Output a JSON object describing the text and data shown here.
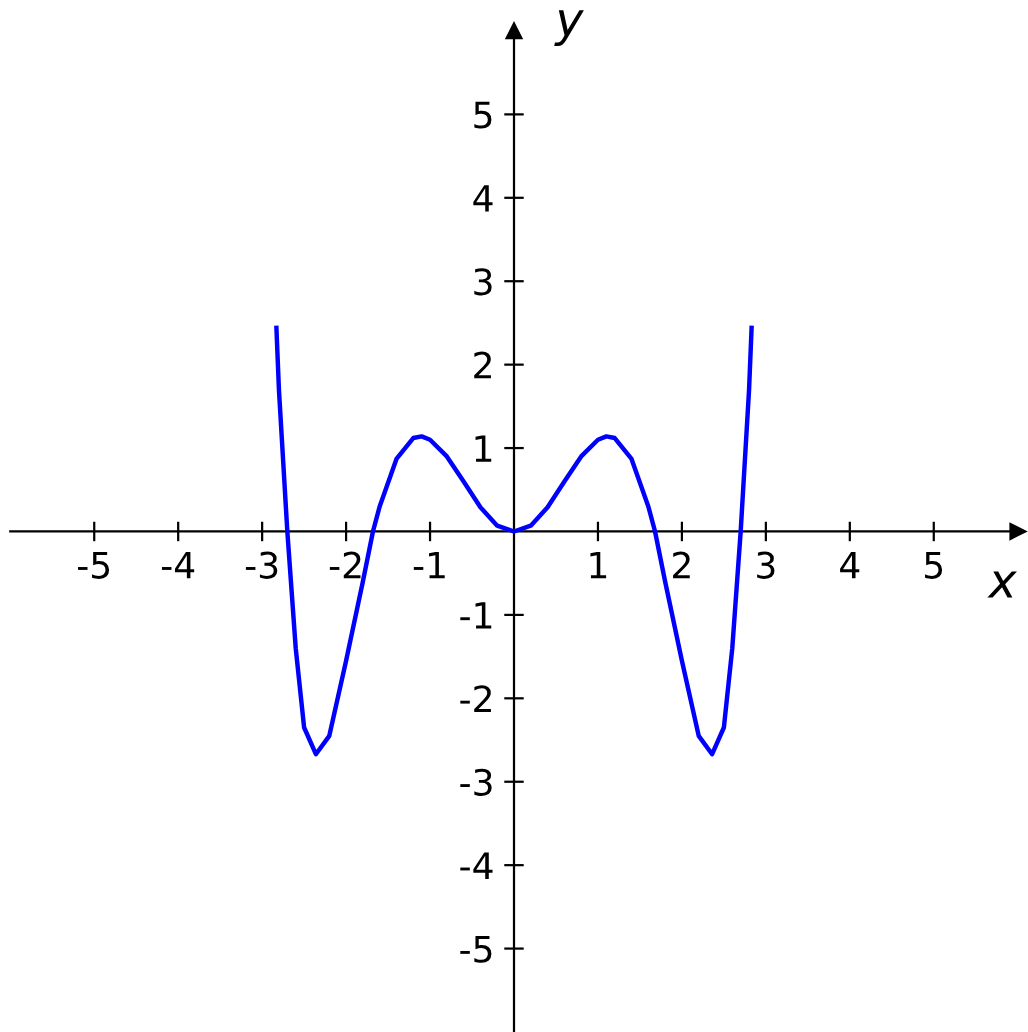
{
  "chart_data": {
    "type": "line",
    "xlabel": "x",
    "ylabel": "y",
    "xlim": [
      -6,
      6
    ],
    "ylim": [
      -6,
      6
    ],
    "xticks": [
      -5,
      -4,
      -3,
      -2,
      -1,
      1,
      2,
      3,
      4,
      5
    ],
    "yticks": [
      -5,
      -4,
      -3,
      -2,
      -1,
      1,
      2,
      3,
      4,
      5
    ],
    "grid": false,
    "legend": false,
    "marker": "none",
    "line_style": "solid",
    "series": [
      {
        "color": "#0000ff",
        "x": [
          -2.83,
          -2.8,
          -2.7,
          -2.6,
          -2.5,
          -2.36,
          -2.2,
          -2.0,
          -1.8,
          -1.68,
          -1.6,
          -1.4,
          -1.2,
          -1.1,
          -1.0,
          -0.8,
          -0.6,
          -0.4,
          -0.2,
          0,
          0.2,
          0.4,
          0.6,
          0.8,
          1.0,
          1.1,
          1.2,
          1.4,
          1.6,
          1.68,
          1.8,
          2.0,
          2.2,
          2.36,
          2.5,
          2.6,
          2.7,
          2.8,
          2.83
        ],
        "values": [
          2.44,
          1.7,
          0,
          -1.4,
          -2.35,
          -2.67,
          -2.45,
          -1.55,
          -0.6,
          0,
          0.3,
          0.87,
          1.12,
          1.14,
          1.1,
          0.9,
          0.6,
          0.29,
          0.07,
          0,
          0.07,
          0.29,
          0.6,
          0.9,
          1.1,
          1.14,
          1.12,
          0.87,
          0.3,
          0,
          -0.6,
          -1.55,
          -2.45,
          -2.67,
          -2.35,
          -1.4,
          0,
          1.7,
          2.44
        ]
      }
    ]
  }
}
